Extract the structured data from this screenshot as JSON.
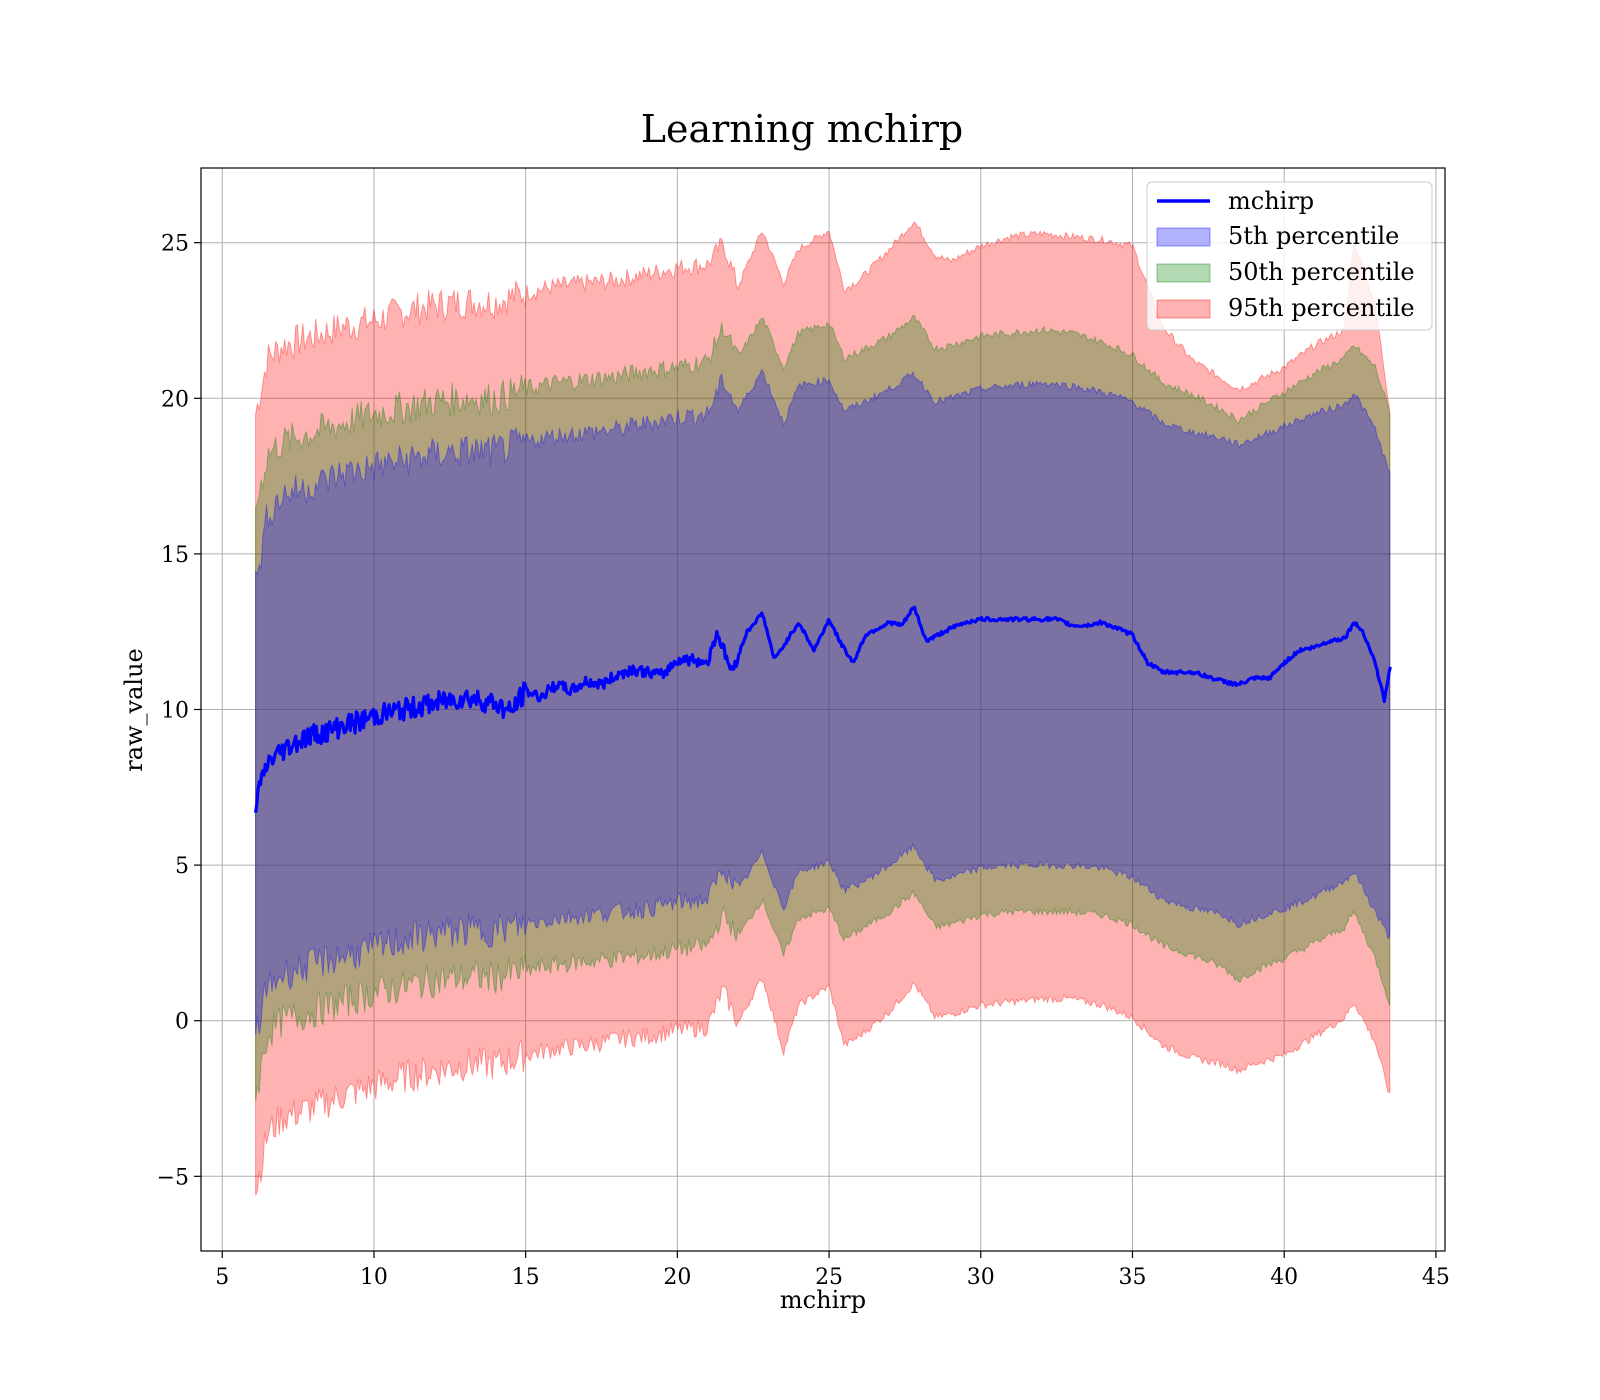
{
  "chart_data": {
    "type": "area",
    "title": "Learning mchirp",
    "xlabel": "mchirp",
    "ylabel": "raw_value",
    "xlim": [
      4.3,
      45.3
    ],
    "ylim": [
      -7.4,
      27.4
    ],
    "xticks": [
      5,
      10,
      15,
      20,
      25,
      30,
      35,
      40,
      45
    ],
    "yticks": [
      -5,
      0,
      5,
      10,
      15,
      20,
      25
    ],
    "ytick_labels": [
      "−5",
      "0",
      "5",
      "10",
      "15",
      "20",
      "25"
    ],
    "grid": true,
    "legend_position": "top-right",
    "line": {
      "name": "mchirp",
      "color": "#0000ff",
      "x": [
        6.1,
        6.5,
        7,
        7.5,
        8,
        8.5,
        9,
        9.5,
        10,
        10.5,
        11,
        11.5,
        12,
        12.5,
        13,
        13.5,
        14,
        14.5,
        15,
        15.5,
        16,
        16.5,
        17,
        17.5,
        18,
        18.5,
        19,
        19.5,
        20,
        20.5,
        21,
        21.3,
        21.8,
        22.3,
        22.8,
        23.2,
        23.6,
        24,
        24.5,
        25,
        25.4,
        25.8,
        26.2,
        26.6,
        27,
        27.4,
        27.8,
        28.2,
        28.6,
        29,
        29.5,
        30,
        31,
        32,
        32.5,
        33,
        33.5,
        34,
        35,
        35.5,
        36,
        37,
        38,
        38.5,
        39,
        39.5,
        40,
        40.5,
        41,
        41.5,
        42,
        42.3,
        42.6,
        43,
        43.3,
        43.5
      ],
      "y": [
        7.0,
        8.3,
        8.7,
        9.0,
        9.2,
        9.3,
        9.5,
        9.6,
        9.8,
        9.9,
        10.0,
        10.1,
        10.2,
        10.3,
        10.4,
        10.3,
        10.2,
        9.9,
        10.6,
        10.4,
        10.8,
        10.6,
        10.9,
        10.8,
        11.1,
        11.3,
        11.2,
        11.1,
        11.6,
        11.6,
        11.5,
        12.5,
        11.2,
        12.5,
        13.1,
        11.6,
        12.2,
        12.8,
        11.9,
        12.9,
        12.1,
        11.5,
        12.4,
        12.6,
        12.8,
        12.7,
        13.3,
        12.2,
        12.4,
        12.6,
        12.8,
        12.9,
        12.9,
        12.9,
        12.9,
        12.7,
        12.7,
        12.8,
        12.4,
        11.5,
        11.2,
        11.2,
        10.9,
        10.8,
        11.0,
        11.0,
        11.5,
        11.9,
        12.0,
        12.2,
        12.3,
        12.8,
        12.5,
        11.5,
        10.3,
        11.4
      ]
    },
    "bands": [
      {
        "name": "5th percentile",
        "color": "#0000ff",
        "x": [
          6.1,
          6.5,
          7,
          8,
          9,
          10,
          11,
          12,
          13,
          14,
          15,
          16,
          17,
          18,
          19,
          20,
          21,
          21.5,
          22,
          22.8,
          23.5,
          24,
          25,
          25.5,
          26,
          27,
          27.8,
          28.5,
          29,
          30,
          31,
          32,
          33,
          34,
          35,
          36,
          37,
          38,
          38.5,
          39,
          40,
          41,
          42,
          42.3,
          43,
          43.5
        ],
        "lower": [
          -0.5,
          1.1,
          1.5,
          1.8,
          2.1,
          2.3,
          2.6,
          2.8,
          2.9,
          2.9,
          3.1,
          3.3,
          3.4,
          3.5,
          3.6,
          3.8,
          3.9,
          4.9,
          4.2,
          5.4,
          3.6,
          4.8,
          5.1,
          4.2,
          4.4,
          5.0,
          5.6,
          4.5,
          4.6,
          4.9,
          5.0,
          5.0,
          5.0,
          4.9,
          4.6,
          3.9,
          3.6,
          3.4,
          3.1,
          3.3,
          3.6,
          4.0,
          4.5,
          4.8,
          3.5,
          2.6
        ],
        "upper": [
          14.0,
          16.3,
          16.9,
          17.2,
          17.6,
          17.8,
          18.0,
          18.2,
          18.3,
          18.3,
          18.6,
          18.8,
          18.9,
          19.0,
          19.2,
          19.4,
          19.5,
          20.6,
          19.6,
          20.9,
          19.2,
          20.4,
          20.6,
          19.6,
          19.8,
          20.3,
          20.8,
          19.9,
          20.0,
          20.3,
          20.4,
          20.5,
          20.4,
          20.2,
          19.9,
          19.2,
          18.9,
          18.7,
          18.5,
          18.7,
          19.1,
          19.5,
          19.8,
          20.2,
          19.0,
          17.5
        ]
      },
      {
        "name": "50th percentile",
        "color": "#008000",
        "x": [
          6.1,
          6.5,
          7,
          8,
          9,
          10,
          11,
          12,
          13,
          14,
          15,
          16,
          17,
          18,
          19,
          20,
          21,
          21.5,
          22,
          22.8,
          23.5,
          24,
          25,
          25.5,
          26,
          27,
          27.8,
          28.5,
          29,
          30,
          31,
          32,
          33,
          34,
          35,
          36,
          37,
          38,
          38.5,
          39,
          40,
          41,
          42,
          42.3,
          43,
          43.5
        ],
        "lower": [
          -2.5,
          -0.4,
          0.0,
          0.3,
          0.6,
          0.9,
          1.1,
          1.3,
          1.4,
          1.4,
          1.6,
          1.8,
          1.9,
          2.0,
          2.1,
          2.3,
          2.4,
          3.4,
          2.7,
          3.9,
          2.1,
          3.3,
          3.6,
          2.6,
          2.9,
          3.5,
          4.1,
          3.0,
          3.1,
          3.4,
          3.5,
          3.5,
          3.5,
          3.4,
          3.1,
          2.4,
          2.1,
          1.7,
          1.3,
          1.6,
          2.0,
          2.5,
          3.0,
          3.5,
          2.0,
          0.5
        ],
        "upper": [
          16.5,
          18.2,
          18.6,
          18.9,
          19.2,
          19.5,
          19.7,
          19.9,
          20.0,
          20.0,
          20.3,
          20.5,
          20.6,
          20.7,
          20.9,
          21.0,
          21.2,
          22.3,
          21.3,
          22.6,
          21.0,
          22.1,
          22.4,
          21.3,
          21.5,
          22.0,
          22.6,
          21.6,
          21.7,
          22.0,
          22.1,
          22.2,
          22.1,
          21.8,
          21.4,
          20.5,
          20.1,
          19.6,
          19.3,
          19.6,
          20.2,
          20.8,
          21.3,
          21.7,
          21.0,
          19.5
        ]
      },
      {
        "name": "95th percentile",
        "color": "#ff0000",
        "x": [
          6.1,
          6.5,
          7,
          8,
          9,
          10,
          11,
          12,
          13,
          14,
          15,
          16,
          17,
          18,
          19,
          20,
          21,
          21.5,
          22,
          22.8,
          23.5,
          24,
          25,
          25.5,
          26,
          27,
          27.8,
          28.5,
          29,
          30,
          31,
          32,
          33,
          34,
          35,
          36,
          37,
          38,
          38.5,
          39,
          40,
          41,
          42,
          42.3,
          43,
          43.5
        ],
        "lower": [
          -5.5,
          -3.6,
          -3.1,
          -2.8,
          -2.4,
          -2.1,
          -1.8,
          -1.6,
          -1.4,
          -1.4,
          -1.1,
          -0.9,
          -0.8,
          -0.6,
          -0.5,
          -0.3,
          -0.2,
          1.0,
          -0.1,
          1.4,
          -1.0,
          0.5,
          1.1,
          -0.8,
          -0.5,
          0.3,
          1.2,
          0.1,
          0.2,
          0.5,
          0.6,
          0.7,
          0.7,
          0.5,
          0.1,
          -0.8,
          -1.2,
          -1.4,
          -1.6,
          -1.4,
          -1.1,
          -0.5,
          0.1,
          0.6,
          -0.7,
          -2.5
        ],
        "upper": [
          19.5,
          21.3,
          21.7,
          22.0,
          22.3,
          22.5,
          22.8,
          23.0,
          23.1,
          23.1,
          23.4,
          23.6,
          23.7,
          23.8,
          24.0,
          24.2,
          24.3,
          25.0,
          23.6,
          25.4,
          23.7,
          24.8,
          25.4,
          23.5,
          23.8,
          24.8,
          25.7,
          24.6,
          24.4,
          24.9,
          25.2,
          25.3,
          25.2,
          25.1,
          24.9,
          22.3,
          21.2,
          20.6,
          20.3,
          20.5,
          21.0,
          21.7,
          22.2,
          25.1,
          23.0,
          19.5
        ]
      }
    ]
  }
}
